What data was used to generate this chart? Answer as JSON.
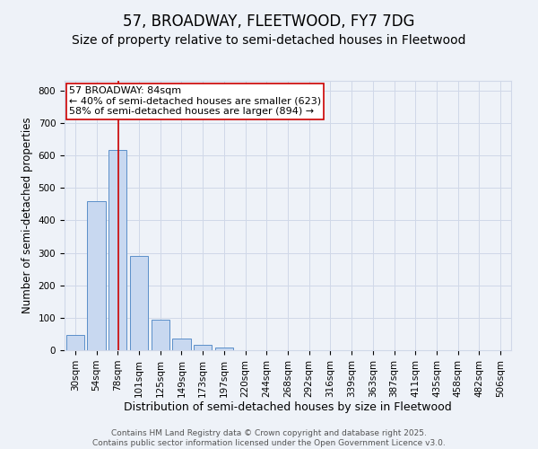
{
  "title": "57, BROADWAY, FLEETWOOD, FY7 7DG",
  "subtitle": "Size of property relative to semi-detached houses in Fleetwood",
  "xlabel": "Distribution of semi-detached houses by size in Fleetwood",
  "ylabel": "Number of semi-detached properties",
  "bar_color": "#c8d8f0",
  "bar_edge_color": "#5b8fc9",
  "categories": [
    "30sqm",
    "54sqm",
    "78sqm",
    "101sqm",
    "125sqm",
    "149sqm",
    "173sqm",
    "197sqm",
    "220sqm",
    "244sqm",
    "268sqm",
    "292sqm",
    "316sqm",
    "339sqm",
    "363sqm",
    "387sqm",
    "411sqm",
    "435sqm",
    "458sqm",
    "482sqm",
    "506sqm"
  ],
  "values": [
    46,
    460,
    617,
    290,
    93,
    35,
    17,
    8,
    0,
    0,
    0,
    0,
    0,
    0,
    0,
    0,
    0,
    0,
    0,
    0,
    0
  ],
  "ylim": [
    0,
    830
  ],
  "yticks": [
    0,
    100,
    200,
    300,
    400,
    500,
    600,
    700,
    800
  ],
  "property_label": "57 BROADWAY: 84sqm",
  "annotation_smaller": "← 40% of semi-detached houses are smaller (623)",
  "annotation_larger": "58% of semi-detached houses are larger (894) →",
  "annotation_box_color": "#ffffff",
  "annotation_box_edge": "#cc0000",
  "vline_color": "#cc0000",
  "grid_color": "#d0d8e8",
  "background_color": "#eef2f8",
  "footer_line1": "Contains HM Land Registry data © Crown copyright and database right 2025.",
  "footer_line2": "Contains public sector information licensed under the Open Government Licence v3.0.",
  "title_fontsize": 12,
  "subtitle_fontsize": 10,
  "xlabel_fontsize": 9,
  "ylabel_fontsize": 8.5,
  "tick_fontsize": 7.5,
  "annot_fontsize": 8,
  "footer_fontsize": 6.5
}
